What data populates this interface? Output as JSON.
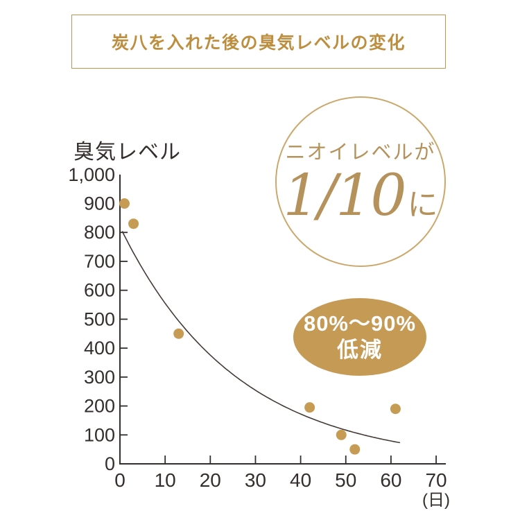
{
  "title": "炭八を入れた後の臭気レベルの変化",
  "y_axis_title": "臭気レベル",
  "x_unit_label": "(日)",
  "badge_circle": {
    "line1": "ニオイレベルが",
    "fraction": "1/10",
    "suffix": "に"
  },
  "badge_ellipse": {
    "line1": "80%〜90%",
    "line2": "低減"
  },
  "colors": {
    "gold_title_text": "#bd8e3f",
    "gold_box_border": "#c2944a",
    "gold_circle_stroke": "#cba86c",
    "gold_serif_text": "#b5925b",
    "gold_ellipse_fill": "#c49a55",
    "dot_fill": "#c69c55",
    "axis_and_labels": "#332e2c",
    "trend_curve": "#443a35",
    "background": "#ffffff"
  },
  "chart_data": {
    "type": "scatter",
    "title": "炭八を入れた後の臭気レベルの変化",
    "xlabel": "(日)",
    "ylabel": "臭気レベル",
    "xlim": [
      0,
      70
    ],
    "ylim": [
      0,
      1000
    ],
    "grid": false,
    "legend": false,
    "x_ticks": [
      0,
      10,
      20,
      30,
      40,
      50,
      60,
      70
    ],
    "x_tick_labels": [
      "0",
      "10",
      "20",
      "30",
      "40",
      "50",
      "60",
      "70"
    ],
    "y_ticks": [
      0,
      100,
      200,
      300,
      400,
      500,
      600,
      700,
      800,
      900,
      1000
    ],
    "y_tick_labels": [
      "0",
      "100",
      "200",
      "300",
      "400",
      "500",
      "600",
      "700",
      "800",
      "900",
      "1,000"
    ],
    "points": [
      {
        "x": 1,
        "y": 900
      },
      {
        "x": 3,
        "y": 830
      },
      {
        "x": 13,
        "y": 450
      },
      {
        "x": 42,
        "y": 195
      },
      {
        "x": 49,
        "y": 100
      },
      {
        "x": 52,
        "y": 50
      },
      {
        "x": 61,
        "y": 190
      }
    ],
    "trend": {
      "type": "exponential_decay",
      "formula": "y = 820 * exp(-0.039 * x)",
      "y0": 820,
      "k": 0.039,
      "x_range": [
        0.5,
        62
      ]
    }
  }
}
